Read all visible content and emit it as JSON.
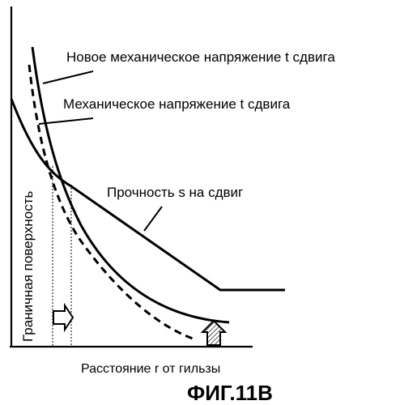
{
  "figure": {
    "title": "ФИГ.11B",
    "xlabel": "Расстояние r от гильзы",
    "ylabel": "Граничная поверхность"
  },
  "curves": {
    "new_shear_stress": "Новое механическое напряжение t сдвига",
    "shear_stress": "Механическое напряжение t сдвига",
    "shear_strength": "Прочность s на сдвиг"
  },
  "colors": {
    "line": "#000000",
    "background": "#ffffff"
  },
  "icons": {
    "shift_arrow_right": "hollow-arrow-right",
    "shift_arrow_up": "hatched-arrow-up"
  }
}
